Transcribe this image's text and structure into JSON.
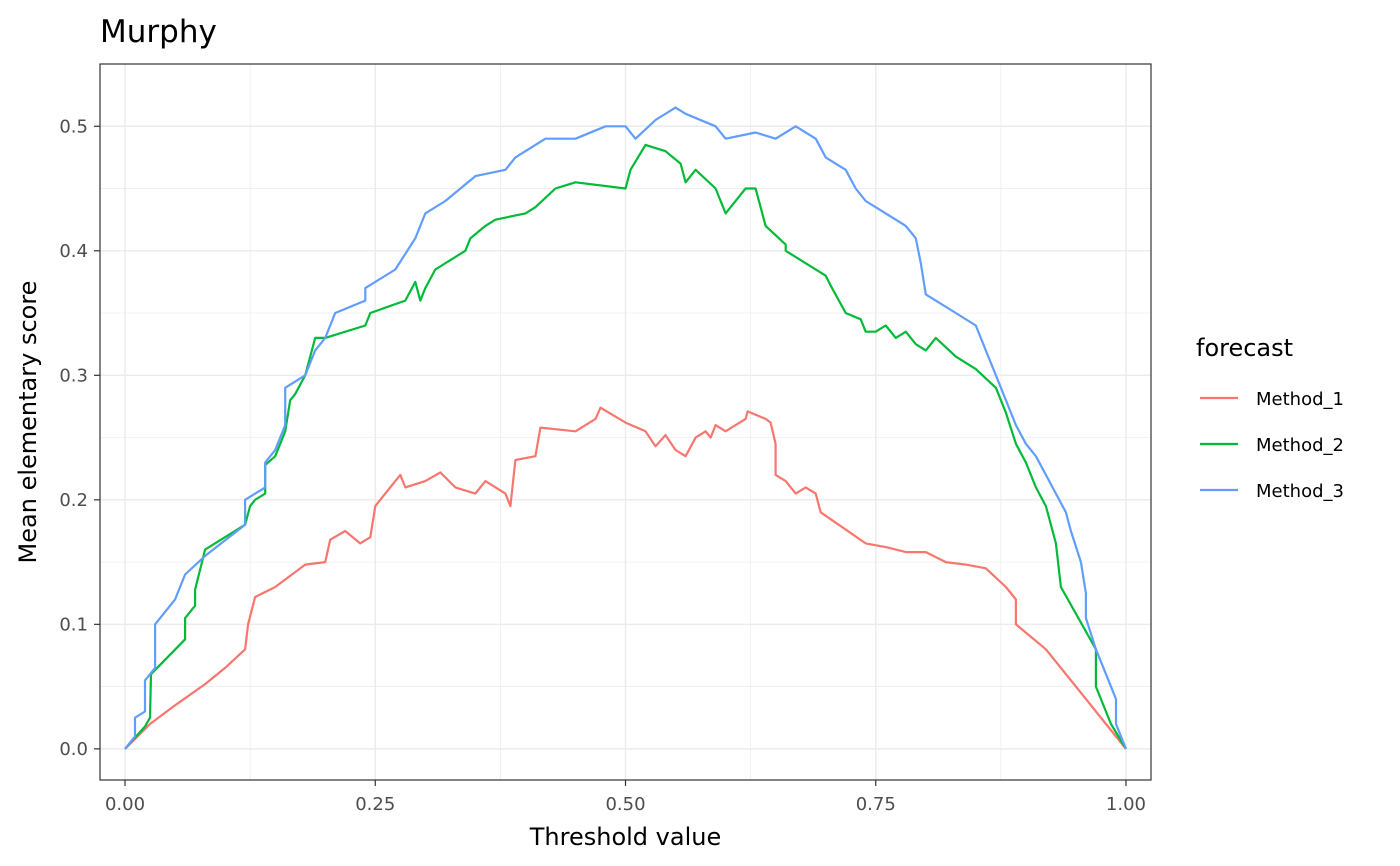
{
  "chart_data": {
    "type": "line",
    "title": "Murphy",
    "xlabel": "Threshold value",
    "ylabel": "Mean elementary score",
    "xlim": [
      -0.025,
      1.025
    ],
    "ylim": [
      -0.025,
      0.55
    ],
    "x_ticks": [
      0,
      0.25,
      0.5,
      0.75,
      1
    ],
    "x_tick_labels": [
      "0.00",
      "0.25",
      "0.50",
      "0.75",
      "1.00"
    ],
    "y_ticks": [
      0,
      0.1,
      0.2,
      0.3,
      0.4,
      0.5
    ],
    "y_tick_labels": [
      "0.0",
      "0.1",
      "0.2",
      "0.3",
      "0.4",
      "0.5"
    ],
    "grid": true,
    "legend": {
      "title": "forecast",
      "position": "right"
    },
    "series": [
      {
        "name": "Method_1",
        "color": "#F8766D",
        "points": [
          [
            0,
            0
          ],
          [
            0.025,
            0.02
          ],
          [
            0.05,
            0.035
          ],
          [
            0.08,
            0.052
          ],
          [
            0.1,
            0.065
          ],
          [
            0.12,
            0.08
          ],
          [
            0.123,
            0.1
          ],
          [
            0.13,
            0.122
          ],
          [
            0.15,
            0.13
          ],
          [
            0.18,
            0.148
          ],
          [
            0.2,
            0.15
          ],
          [
            0.205,
            0.168
          ],
          [
            0.22,
            0.175
          ],
          [
            0.235,
            0.165
          ],
          [
            0.245,
            0.17
          ],
          [
            0.25,
            0.195
          ],
          [
            0.255,
            0.2
          ],
          [
            0.27,
            0.215
          ],
          [
            0.275,
            0.22
          ],
          [
            0.28,
            0.21
          ],
          [
            0.3,
            0.215
          ],
          [
            0.315,
            0.222
          ],
          [
            0.33,
            0.21
          ],
          [
            0.35,
            0.205
          ],
          [
            0.36,
            0.215
          ],
          [
            0.38,
            0.205
          ],
          [
            0.385,
            0.195
          ],
          [
            0.39,
            0.232
          ],
          [
            0.41,
            0.235
          ],
          [
            0.415,
            0.258
          ],
          [
            0.45,
            0.255
          ],
          [
            0.47,
            0.265
          ],
          [
            0.475,
            0.274
          ],
          [
            0.5,
            0.262
          ],
          [
            0.52,
            0.255
          ],
          [
            0.53,
            0.243
          ],
          [
            0.54,
            0.252
          ],
          [
            0.55,
            0.24
          ],
          [
            0.56,
            0.235
          ],
          [
            0.57,
            0.25
          ],
          [
            0.58,
            0.255
          ],
          [
            0.585,
            0.25
          ],
          [
            0.59,
            0.26
          ],
          [
            0.6,
            0.255
          ],
          [
            0.61,
            0.26
          ],
          [
            0.62,
            0.265
          ],
          [
            0.622,
            0.271
          ],
          [
            0.64,
            0.265
          ],
          [
            0.645,
            0.262
          ],
          [
            0.65,
            0.245
          ],
          [
            0.65,
            0.22
          ],
          [
            0.66,
            0.215
          ],
          [
            0.67,
            0.205
          ],
          [
            0.68,
            0.21
          ],
          [
            0.69,
            0.205
          ],
          [
            0.695,
            0.19
          ],
          [
            0.74,
            0.165
          ],
          [
            0.76,
            0.162
          ],
          [
            0.78,
            0.158
          ],
          [
            0.8,
            0.158
          ],
          [
            0.82,
            0.15
          ],
          [
            0.84,
            0.148
          ],
          [
            0.86,
            0.145
          ],
          [
            0.88,
            0.13
          ],
          [
            0.89,
            0.12
          ],
          [
            0.89,
            0.1
          ],
          [
            0.92,
            0.08
          ],
          [
            0.95,
            0.05
          ],
          [
            0.98,
            0.02
          ],
          [
            1,
            0
          ]
        ]
      },
      {
        "name": "Method_2",
        "color": "#00BA38",
        "points": [
          [
            0,
            0
          ],
          [
            0.02,
            0.018
          ],
          [
            0.025,
            0.025
          ],
          [
            0.026,
            0.06
          ],
          [
            0.06,
            0.088
          ],
          [
            0.06,
            0.105
          ],
          [
            0.07,
            0.115
          ],
          [
            0.07,
            0.128
          ],
          [
            0.08,
            0.16
          ],
          [
            0.12,
            0.18
          ],
          [
            0.125,
            0.195
          ],
          [
            0.13,
            0.2
          ],
          [
            0.14,
            0.205
          ],
          [
            0.14,
            0.228
          ],
          [
            0.15,
            0.235
          ],
          [
            0.16,
            0.255
          ],
          [
            0.165,
            0.28
          ],
          [
            0.17,
            0.285
          ],
          [
            0.18,
            0.3
          ],
          [
            0.19,
            0.33
          ],
          [
            0.2,
            0.33
          ],
          [
            0.24,
            0.34
          ],
          [
            0.245,
            0.35
          ],
          [
            0.28,
            0.36
          ],
          [
            0.29,
            0.375
          ],
          [
            0.295,
            0.36
          ],
          [
            0.3,
            0.37
          ],
          [
            0.31,
            0.385
          ],
          [
            0.34,
            0.4
          ],
          [
            0.345,
            0.41
          ],
          [
            0.36,
            0.42
          ],
          [
            0.37,
            0.425
          ],
          [
            0.4,
            0.43
          ],
          [
            0.41,
            0.435
          ],
          [
            0.43,
            0.45
          ],
          [
            0.45,
            0.455
          ],
          [
            0.5,
            0.45
          ],
          [
            0.505,
            0.465
          ],
          [
            0.52,
            0.485
          ],
          [
            0.54,
            0.48
          ],
          [
            0.555,
            0.47
          ],
          [
            0.56,
            0.455
          ],
          [
            0.57,
            0.465
          ],
          [
            0.59,
            0.45
          ],
          [
            0.6,
            0.43
          ],
          [
            0.615,
            0.445
          ],
          [
            0.62,
            0.45
          ],
          [
            0.63,
            0.45
          ],
          [
            0.64,
            0.42
          ],
          [
            0.66,
            0.405
          ],
          [
            0.66,
            0.4
          ],
          [
            0.7,
            0.38
          ],
          [
            0.705,
            0.372
          ],
          [
            0.72,
            0.35
          ],
          [
            0.735,
            0.345
          ],
          [
            0.74,
            0.335
          ],
          [
            0.75,
            0.335
          ],
          [
            0.76,
            0.34
          ],
          [
            0.77,
            0.33
          ],
          [
            0.78,
            0.335
          ],
          [
            0.79,
            0.325
          ],
          [
            0.8,
            0.32
          ],
          [
            0.81,
            0.33
          ],
          [
            0.83,
            0.315
          ],
          [
            0.85,
            0.305
          ],
          [
            0.87,
            0.29
          ],
          [
            0.88,
            0.27
          ],
          [
            0.89,
            0.245
          ],
          [
            0.9,
            0.23
          ],
          [
            0.91,
            0.21
          ],
          [
            0.92,
            0.195
          ],
          [
            0.93,
            0.165
          ],
          [
            0.935,
            0.13
          ],
          [
            0.97,
            0.08
          ],
          [
            0.97,
            0.05
          ],
          [
            0.985,
            0.02
          ],
          [
            1,
            0
          ]
        ]
      },
      {
        "name": "Method_3",
        "color": "#619CFF",
        "points": [
          [
            0,
            0
          ],
          [
            0.01,
            0.01
          ],
          [
            0.01,
            0.025
          ],
          [
            0.02,
            0.03
          ],
          [
            0.02,
            0.055
          ],
          [
            0.03,
            0.065
          ],
          [
            0.03,
            0.1
          ],
          [
            0.05,
            0.12
          ],
          [
            0.06,
            0.14
          ],
          [
            0.08,
            0.155
          ],
          [
            0.12,
            0.18
          ],
          [
            0.12,
            0.2
          ],
          [
            0.14,
            0.21
          ],
          [
            0.14,
            0.23
          ],
          [
            0.15,
            0.24
          ],
          [
            0.16,
            0.26
          ],
          [
            0.16,
            0.29
          ],
          [
            0.18,
            0.3
          ],
          [
            0.19,
            0.32
          ],
          [
            0.2,
            0.33
          ],
          [
            0.21,
            0.35
          ],
          [
            0.24,
            0.36
          ],
          [
            0.24,
            0.37
          ],
          [
            0.27,
            0.385
          ],
          [
            0.29,
            0.41
          ],
          [
            0.3,
            0.43
          ],
          [
            0.32,
            0.44
          ],
          [
            0.35,
            0.46
          ],
          [
            0.38,
            0.465
          ],
          [
            0.39,
            0.475
          ],
          [
            0.42,
            0.49
          ],
          [
            0.45,
            0.49
          ],
          [
            0.48,
            0.5
          ],
          [
            0.5,
            0.5
          ],
          [
            0.51,
            0.49
          ],
          [
            0.53,
            0.505
          ],
          [
            0.55,
            0.515
          ],
          [
            0.56,
            0.51
          ],
          [
            0.59,
            0.5
          ],
          [
            0.6,
            0.49
          ],
          [
            0.63,
            0.495
          ],
          [
            0.65,
            0.49
          ],
          [
            0.67,
            0.5
          ],
          [
            0.69,
            0.49
          ],
          [
            0.7,
            0.475
          ],
          [
            0.72,
            0.465
          ],
          [
            0.73,
            0.45
          ],
          [
            0.74,
            0.44
          ],
          [
            0.78,
            0.42
          ],
          [
            0.79,
            0.41
          ],
          [
            0.795,
            0.39
          ],
          [
            0.8,
            0.365
          ],
          [
            0.83,
            0.35
          ],
          [
            0.85,
            0.34
          ],
          [
            0.86,
            0.32
          ],
          [
            0.87,
            0.3
          ],
          [
            0.88,
            0.28
          ],
          [
            0.89,
            0.26
          ],
          [
            0.9,
            0.245
          ],
          [
            0.91,
            0.235
          ],
          [
            0.92,
            0.22
          ],
          [
            0.93,
            0.205
          ],
          [
            0.94,
            0.19
          ],
          [
            0.945,
            0.175
          ],
          [
            0.955,
            0.15
          ],
          [
            0.96,
            0.125
          ],
          [
            0.96,
            0.105
          ],
          [
            0.97,
            0.08
          ],
          [
            0.98,
            0.06
          ],
          [
            0.99,
            0.04
          ],
          [
            0.99,
            0.02
          ],
          [
            1,
            0
          ]
        ]
      }
    ]
  }
}
